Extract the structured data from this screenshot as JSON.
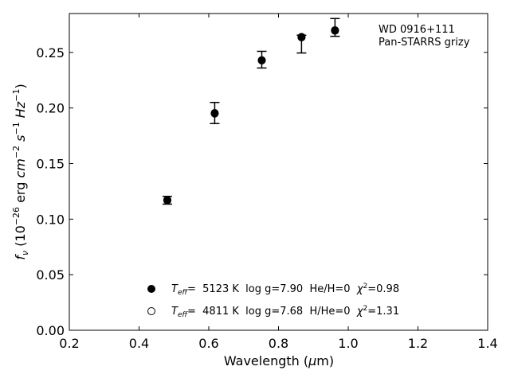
{
  "chart_data": {
    "type": "scatter",
    "xlabel": "Wavelength (μm)",
    "xlabel_parts": {
      "pre": "Wavelength (",
      "mu": "μ",
      "post": "m)"
    },
    "ylabel_parts": {
      "f": "f",
      "nu": "ν",
      "open": " (10",
      "exp1": "−26",
      "mid": " erg ",
      "cm": "cm",
      "exp2": "−2",
      "s": " s",
      "exp3": "−1",
      "hz": " Hz",
      "exp4": "−1",
      "close": ")"
    },
    "xlim": [
      0.2,
      1.4
    ],
    "ylim": [
      0.0,
      0.285
    ],
    "xticks": [
      0.2,
      0.4,
      0.6,
      0.8,
      1.0,
      1.2,
      1.4
    ],
    "xtick_labels": [
      "0.2",
      "0.4",
      "0.6",
      "0.8",
      "1.0",
      "1.2",
      "1.4"
    ],
    "yticks": [
      0.0,
      0.05,
      0.1,
      0.15,
      0.2,
      0.25
    ],
    "ytick_labels": [
      "0.00",
      "0.05",
      "0.10",
      "0.15",
      "0.20",
      "0.25"
    ],
    "grid": false,
    "annotation_lines": [
      "WD 0916+111",
      "Pan-STARRS grizy"
    ],
    "observed": {
      "x": [
        0.481,
        0.617,
        0.752,
        0.866,
        0.962
      ],
      "y": [
        0.117,
        0.1955,
        0.2435,
        0.2575,
        0.2725
      ],
      "yerr": [
        0.0035,
        0.0095,
        0.0075,
        0.008,
        0.008
      ]
    },
    "series": [
      {
        "marker": "filled",
        "label": {
          "T": "T",
          "sub": "eff",
          "rest1": "=  5123 K  log g=7.90  He/H=0  ",
          "chi": "χ",
          "sup": "2",
          "rest2": "=0.98"
        },
        "x": [
          0.481,
          0.617,
          0.752,
          0.866,
          0.962
        ],
        "y": [
          0.1172,
          0.1955,
          0.2428,
          0.2635,
          0.27
        ]
      },
      {
        "marker": "open",
        "label": {
          "T": "T",
          "sub": "eff",
          "rest1": "=  4811 K  log g=7.68  H/He=0  ",
          "chi": "χ",
          "sup": "2",
          "rest2": "=1.31"
        },
        "x": [
          0.481,
          0.617,
          0.752,
          0.866,
          0.962
        ],
        "y": [
          0.1168,
          0.195,
          0.243,
          0.264,
          0.2695
        ]
      }
    ],
    "legend_position": "lower-center"
  }
}
